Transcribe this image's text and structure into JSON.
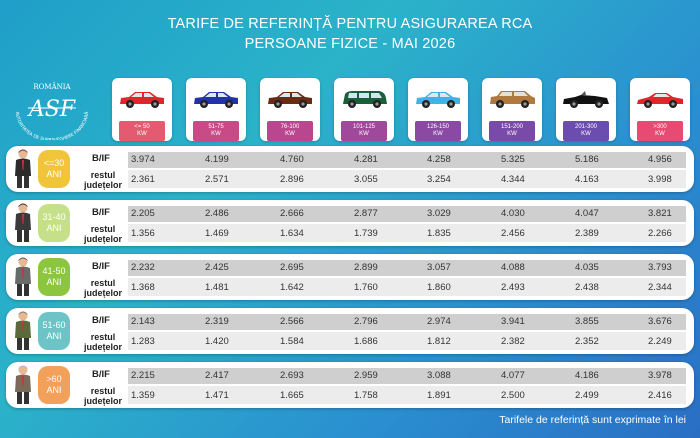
{
  "title": {
    "line1": "TARIFE DE REFERINȚĂ PENTRU ASIGURAREA RCA",
    "line2": "PERSOANE FIZICE - MAI 2026"
  },
  "logo": {
    "top_text": "ROMÂNIA",
    "letters": "ASF",
    "arc_text": "AUTORITATEA DE SUPRAVEGHERE FINANCIARĂ"
  },
  "colors": {
    "background": "#2aa6cc",
    "bif_strip": "#cfcfcf",
    "rest_strip": "#ececec"
  },
  "car_categories": [
    {
      "kw_line1": "<= 50",
      "kw_line2": "KW",
      "car_color": "#e0262b",
      "badge_color": "#e45a70",
      "type": "hatchback"
    },
    {
      "kw_line1": "51-75",
      "kw_line2": "KW",
      "car_color": "#2233a8",
      "badge_color": "#c84a86",
      "type": "hatchback"
    },
    {
      "kw_line1": "76-100",
      "kw_line2": "KW",
      "car_color": "#6a2b14",
      "badge_color": "#b9478f",
      "type": "hatchback"
    },
    {
      "kw_line1": "101-125",
      "kw_line2": "KW",
      "car_color": "#1a5e3a",
      "badge_color": "#a0489a",
      "type": "van"
    },
    {
      "kw_line1": "126-150",
      "kw_line2": "KW",
      "car_color": "#41b2e6",
      "badge_color": "#8a4aa4",
      "type": "hatchback"
    },
    {
      "kw_line1": "151-200",
      "kw_line2": "KW",
      "car_color": "#b07a3e",
      "badge_color": "#7a4aa8",
      "type": "suv"
    },
    {
      "kw_line1": "201-300",
      "kw_line2": "KW",
      "car_color": "#111111",
      "badge_color": "#6b4db0",
      "type": "cabrio"
    },
    {
      "kw_line1": ">300",
      "kw_line2": "KW",
      "car_color": "#e0262b",
      "badge_color": "#e74a72",
      "type": "sport"
    }
  ],
  "row_labels": {
    "bif": "B/IF",
    "rest_line1": "restul",
    "rest_line2": "județelor"
  },
  "age_groups": [
    {
      "label_line1": "<=30",
      "label_line2": "ANI",
      "color": "#f0c53a",
      "bif": [
        "3.974",
        "4.199",
        "4.760",
        "4.281",
        "4.258",
        "5.325",
        "5.186",
        "4.956"
      ],
      "rest": [
        "2.361",
        "2.571",
        "2.896",
        "3.055",
        "3.254",
        "4.344",
        "4.163",
        "3.998"
      ]
    },
    {
      "label_line1": "31-40",
      "label_line2": "ANI",
      "color": "#c6e08a",
      "bif": [
        "2.205",
        "2.486",
        "2.666",
        "2.877",
        "3.029",
        "4.030",
        "4.047",
        "3.821"
      ],
      "rest": [
        "1.356",
        "1.469",
        "1.634",
        "1.739",
        "1.835",
        "2.456",
        "2.389",
        "2.266"
      ]
    },
    {
      "label_line1": "41-50",
      "label_line2": "ANI",
      "color": "#8cc63f",
      "bif": [
        "2.232",
        "2.425",
        "2.695",
        "2.899",
        "3.057",
        "4.088",
        "4.035",
        "3.793"
      ],
      "rest": [
        "1.368",
        "1.481",
        "1.642",
        "1.760",
        "1.860",
        "2.493",
        "2.438",
        "2.344"
      ]
    },
    {
      "label_line1": "51-60",
      "label_line2": "ANI",
      "color": "#6ec3c7",
      "bif": [
        "2.143",
        "2.319",
        "2.566",
        "2.796",
        "2.974",
        "3.941",
        "3.855",
        "3.676"
      ],
      "rest": [
        "1.283",
        "1.420",
        "1.584",
        "1.686",
        "1.812",
        "2.382",
        "2.352",
        "2.249"
      ]
    },
    {
      "label_line1": ">60",
      "label_line2": "ANI",
      "color": "#f2a05a",
      "bif": [
        "2.215",
        "2.417",
        "2.693",
        "2.959",
        "3.088",
        "4.077",
        "4.186",
        "3.978"
      ],
      "rest": [
        "1.359",
        "1.471",
        "1.665",
        "1.758",
        "1.891",
        "2.500",
        "2.499",
        "2.416"
      ]
    }
  ],
  "footer": "Tarifele de referință sunt exprimate în lei"
}
